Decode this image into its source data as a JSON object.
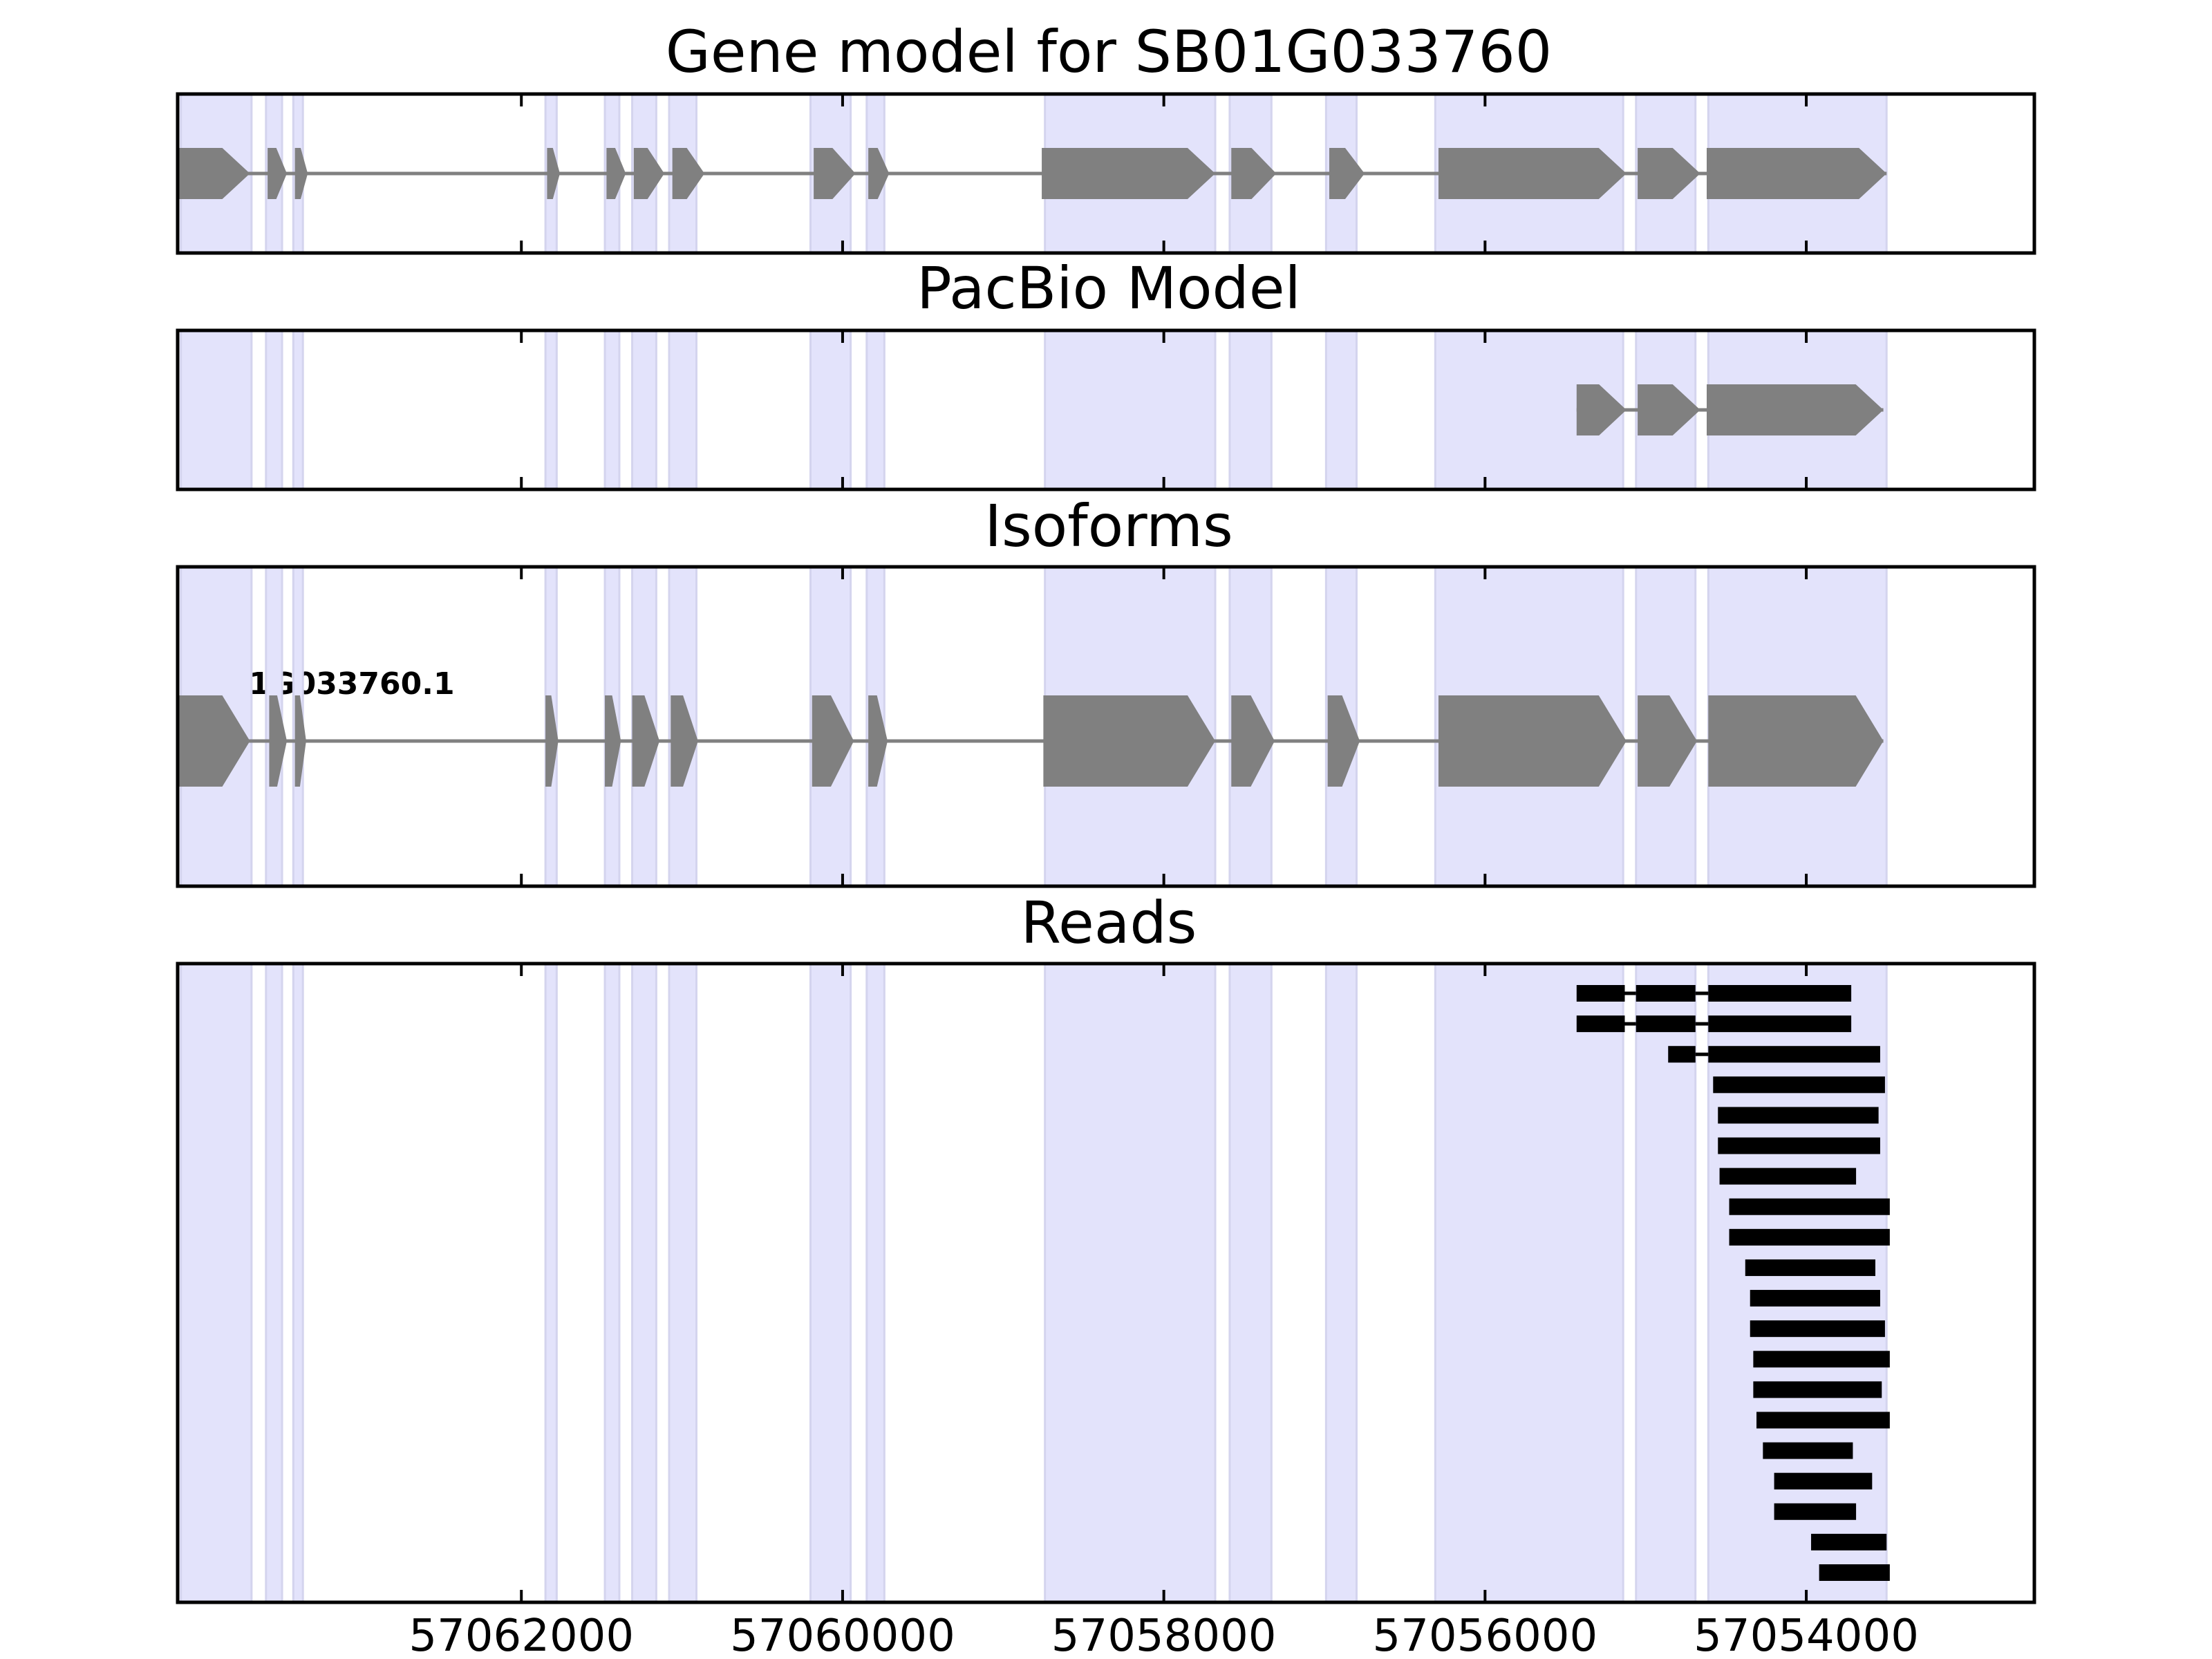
{
  "chart_data": {
    "type": "gene-model-tracks",
    "x_axis": {
      "reversed": true,
      "xlim": [
        57064140,
        57052580
      ],
      "tick_values": [
        57062000,
        57060000,
        57058000,
        57056000,
        57054000
      ],
      "tick_labels": [
        "57062000",
        "57060000",
        "57058000",
        "57056000",
        "57054000"
      ]
    },
    "exon_highlights": [
      [
        57064120,
        57063680
      ],
      [
        57063590,
        57063490
      ],
      [
        57063420,
        57063360
      ],
      [
        57061850,
        57061780
      ],
      [
        57061480,
        57061390
      ],
      [
        57061310,
        57061160
      ],
      [
        57061080,
        57060910
      ],
      [
        57060200,
        57059950
      ],
      [
        57059850,
        57059740
      ],
      [
        57058740,
        57057680
      ],
      [
        57057590,
        57057330
      ],
      [
        57056990,
        57056800
      ],
      [
        57056310,
        57055140
      ],
      [
        57055060,
        57054690
      ],
      [
        57054610,
        57053500
      ]
    ],
    "panels": [
      {
        "title": "Gene model for SB01G033760",
        "track_type": "gene",
        "genes": [
          {
            "strand": "-",
            "exons": [
              [
                57064140,
                57063690
              ],
              [
                57063580,
                57063460
              ],
              [
                57063410,
                57063330
              ],
              [
                57061840,
                57061760
              ],
              [
                57061470,
                57061350
              ],
              [
                57061300,
                57061110
              ],
              [
                57061060,
                57060860
              ],
              [
                57060180,
                57059920
              ],
              [
                57059840,
                57059710
              ],
              [
                57058760,
                57057680
              ],
              [
                57057580,
                57057300
              ],
              [
                57056970,
                57056750
              ],
              [
                57056290,
                57055120
              ],
              [
                57055050,
                57054660
              ],
              [
                57054620,
                57053500
              ]
            ]
          }
        ]
      },
      {
        "title": "PacBio Model",
        "track_type": "gene",
        "genes": [
          {
            "strand": "-",
            "exons": [
              [
                57055430,
                57055120
              ],
              [
                57055050,
                57054660
              ],
              [
                57054620,
                57053520
              ]
            ]
          }
        ]
      },
      {
        "title": "Isoforms",
        "track_type": "gene",
        "genes": [
          {
            "name": "SB01G033760.1",
            "strand": "-",
            "exons": [
              [
                57064140,
                57063690
              ],
              [
                57063570,
                57063460
              ],
              [
                57063410,
                57063340
              ],
              [
                57061850,
                57061770
              ],
              [
                57061480,
                57061380
              ],
              [
                57061310,
                57061140
              ],
              [
                57061070,
                57060900
              ],
              [
                57060190,
                57059930
              ],
              [
                57059840,
                57059720
              ],
              [
                57058750,
                57057680
              ],
              [
                57057580,
                57057310
              ],
              [
                57056980,
                57056780
              ],
              [
                57056290,
                57055120
              ],
              [
                57055050,
                57054680
              ],
              [
                57054610,
                57053520
              ]
            ]
          }
        ]
      },
      {
        "title": "Reads",
        "track_type": "reads",
        "reads": [
          [
            [
              57055430,
              57055130
            ],
            [
              57055060,
              57054690
            ],
            [
              57054610,
              57053720
            ]
          ],
          [
            [
              57055430,
              57055130
            ],
            [
              57055060,
              57054690
            ],
            [
              57054610,
              57053720
            ]
          ],
          [
            [
              57054860,
              57054690
            ],
            [
              57054610,
              57053540
            ]
          ],
          [
            [
              57054580,
              57053510
            ]
          ],
          [
            [
              57054550,
              57053550
            ]
          ],
          [
            [
              57054550,
              57053540
            ]
          ],
          [
            [
              57054540,
              57053690
            ]
          ],
          [
            [
              57054480,
              57053480
            ]
          ],
          [
            [
              57054480,
              57053480
            ]
          ],
          [
            [
              57054380,
              57053570
            ]
          ],
          [
            [
              57054350,
              57053540
            ]
          ],
          [
            [
              57054350,
              57053510
            ]
          ],
          [
            [
              57054330,
              57053480
            ]
          ],
          [
            [
              57054330,
              57053530
            ]
          ],
          [
            [
              57054310,
              57053480
            ]
          ],
          [
            [
              57054270,
              57053710
            ]
          ],
          [
            [
              57054200,
              57053590
            ]
          ],
          [
            [
              57054200,
              57053690
            ]
          ],
          [
            [
              57053970,
              57053500
            ]
          ],
          [
            [
              57053920,
              57053480
            ]
          ]
        ]
      }
    ]
  }
}
